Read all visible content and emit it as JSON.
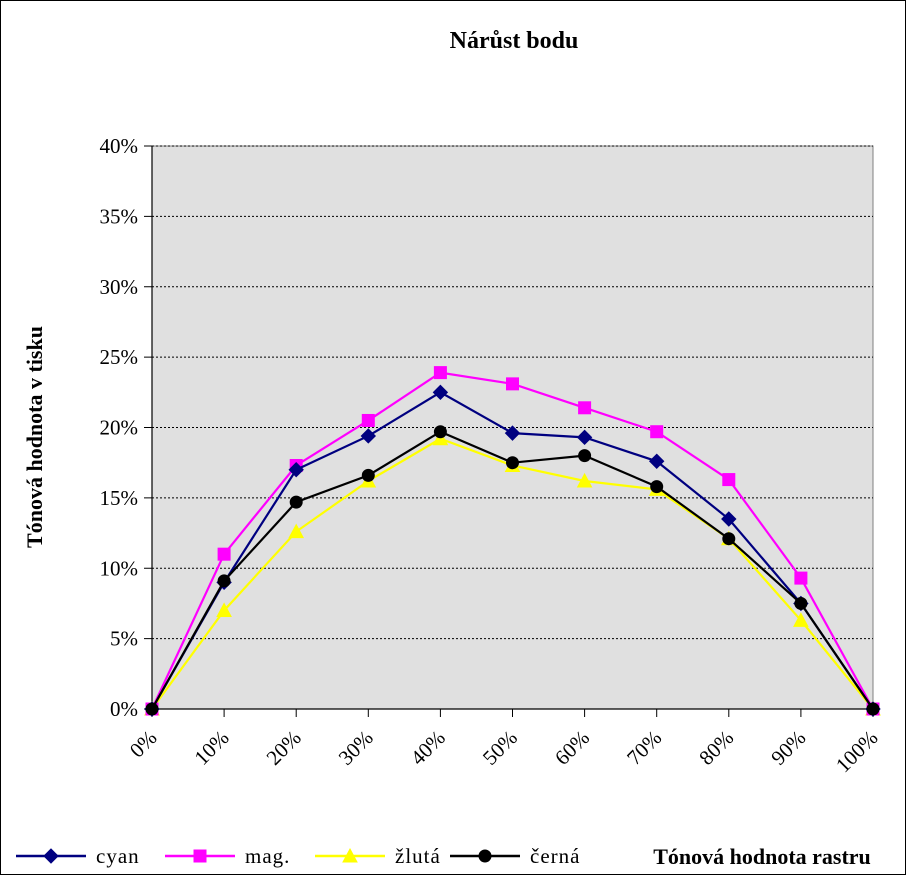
{
  "chart_data": {
    "type": "line",
    "title": "Nárůst bodu",
    "xlabel": "Tónová hodnota rastru",
    "ylabel": "Tónová hodnota v tisku",
    "categories": [
      "0%",
      "10%",
      "20%",
      "30%",
      "40%",
      "50%",
      "60%",
      "70%",
      "80%",
      "90%",
      "100%"
    ],
    "y_ticks": [
      "0%",
      "5%",
      "10%",
      "15%",
      "20%",
      "25%",
      "30%",
      "35%",
      "40%"
    ],
    "ylim": [
      0,
      40
    ],
    "grid": true,
    "legend_position": "bottom-left",
    "series": [
      {
        "name": "cyan",
        "color": "#000080",
        "marker": "diamond",
        "values": [
          0,
          9.0,
          17.0,
          19.4,
          22.5,
          19.6,
          19.3,
          17.6,
          13.5,
          7.5,
          0
        ]
      },
      {
        "name": "mag.",
        "color": "#ff00ff",
        "marker": "square",
        "values": [
          0,
          11.0,
          17.3,
          20.5,
          23.9,
          23.1,
          21.4,
          19.7,
          16.3,
          9.3,
          0
        ]
      },
      {
        "name": "žlutá",
        "color": "#ffff00",
        "marker": "triangle",
        "values": [
          0,
          7.0,
          12.6,
          16.2,
          19.2,
          17.3,
          16.2,
          15.6,
          12.1,
          6.3,
          0
        ]
      },
      {
        "name": "černá",
        "color": "#000000",
        "marker": "circle",
        "values": [
          0,
          9.1,
          14.7,
          16.6,
          19.7,
          17.5,
          18.0,
          15.8,
          12.1,
          7.5,
          0
        ]
      }
    ],
    "plot_background": "#e0e0e0",
    "gridline_color": "#000000"
  }
}
